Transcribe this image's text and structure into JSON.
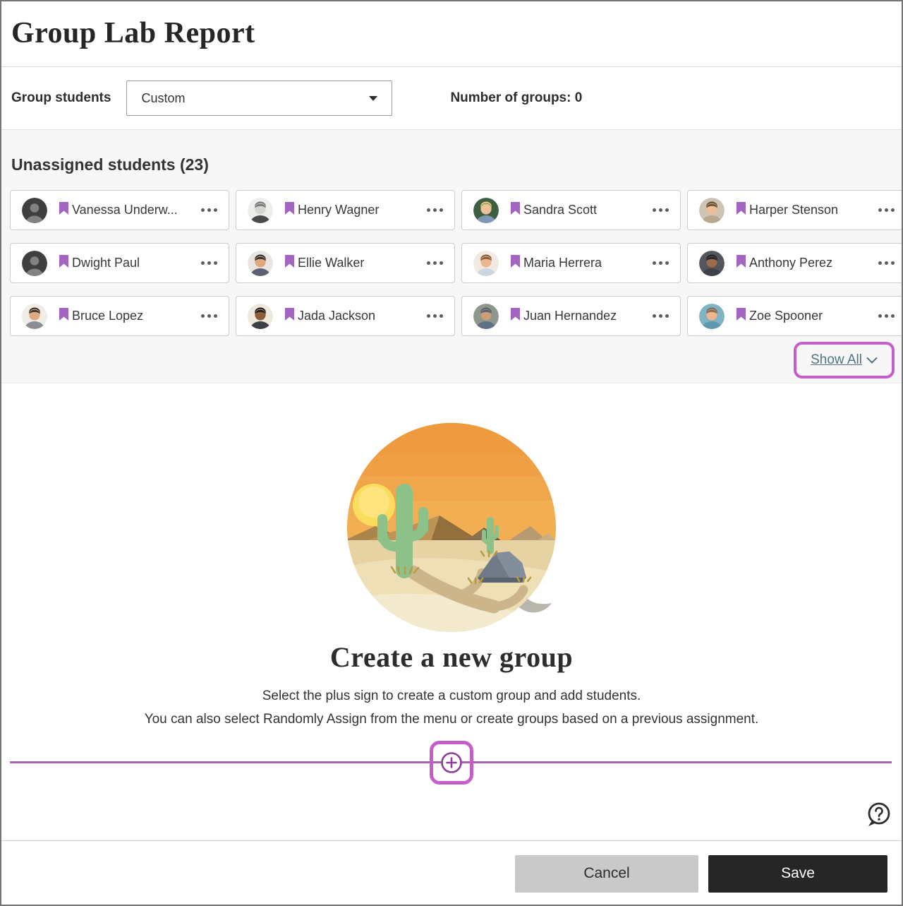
{
  "window": {
    "title": "Group Lab Report"
  },
  "toolbar": {
    "group_students_label": "Group students",
    "group_students_value": "Custom",
    "number_of_groups_label": "Number of groups: 0"
  },
  "unassigned": {
    "heading": "Unassigned students (23)",
    "show_all_label": "Show All",
    "students": [
      {
        "name": "Vanessa Underw...",
        "flagged": false,
        "avatar": {
          "type": "generic"
        }
      },
      {
        "name": "Henry Wagner",
        "flagged": false,
        "avatar": {
          "type": "photo",
          "bg": "#ededeb",
          "hair": "#777777",
          "skin": "#d6d4d0",
          "shirt": "#4a4a4a"
        }
      },
      {
        "name": "Sandra Scott",
        "flagged": false,
        "avatar": {
          "type": "photo",
          "bg": "#3c5f41",
          "hair": "#e3c984",
          "skin": "#eec29a",
          "shirt": "#7d97b5"
        }
      },
      {
        "name": "Harper Stenson",
        "flagged": false,
        "avatar": {
          "type": "photo",
          "bg": "#cfc4b4",
          "hair": "#6e4f33",
          "skin": "#edbf97",
          "shirt": "#b9a98f"
        }
      },
      {
        "name": "Dwight Paul",
        "flagged": false,
        "avatar": {
          "type": "generic"
        }
      },
      {
        "name": "Ellie Walker",
        "flagged": true,
        "avatar": {
          "type": "photo",
          "bg": "#e9e5e0",
          "hair": "#35302c",
          "skin": "#e0a87e",
          "shirt": "#5d5f75"
        }
      },
      {
        "name": "Maria Herrera",
        "flagged": false,
        "avatar": {
          "type": "photo",
          "bg": "#f0eae2",
          "hair": "#8c5a33",
          "skin": "#eab890",
          "shirt": "#cdd6e0"
        }
      },
      {
        "name": "Anthony Perez",
        "flagged": false,
        "avatar": {
          "type": "photo",
          "bg": "#55555c",
          "hair": "#23232a",
          "skin": "#9c6c4a",
          "shirt": "#3e4148"
        }
      },
      {
        "name": "Bruce Lopez",
        "flagged": false,
        "avatar": {
          "type": "photo",
          "bg": "#f0ece6",
          "hair": "#3e3128",
          "skin": "#ddab81",
          "shirt": "#8a8d92"
        }
      },
      {
        "name": "Jada Jackson",
        "flagged": false,
        "avatar": {
          "type": "photo",
          "bg": "#efe8dc",
          "hair": "#221c19",
          "skin": "#8d5c3b",
          "shirt": "#3c3f46"
        }
      },
      {
        "name": "Juan Hernandez",
        "flagged": false,
        "avatar": {
          "type": "photo",
          "bg": "#8e978c",
          "hair": "#5b616e",
          "skin": "#c99f78",
          "shirt": "#5e7086"
        }
      },
      {
        "name": "Zoe Spooner",
        "flagged": false,
        "avatar": {
          "type": "photo",
          "bg": "#7fb3c3",
          "hair": "#8a6a4e",
          "skin": "#ecb68e",
          "shirt": "#5d98ad"
        }
      }
    ]
  },
  "empty_state": {
    "heading": "Create a new group",
    "line1": "Select the plus sign to create a custom group and add students.",
    "line2": "You can also select Randomly Assign from the menu or create groups based on a previous assignment."
  },
  "footer": {
    "cancel_label": "Cancel",
    "save_label": "Save"
  },
  "icons": {
    "more_options": "ellipsis-dots",
    "dropdown_caret": "solid-triangle-down",
    "show_all_chevron": "chevron-down",
    "accommodations_flag": "purple-bookmark",
    "create_group": "plus-in-circle",
    "help": "question-mark-bubble"
  },
  "colors": {
    "annotation": "#c45ec9",
    "divider_line": "#a766ae",
    "plus_icon": "#8b3f98",
    "link": "#4d7484",
    "save_bg": "#262626",
    "cancel_bg": "#c9c9c9",
    "section_bg": "#f8f7f7"
  }
}
